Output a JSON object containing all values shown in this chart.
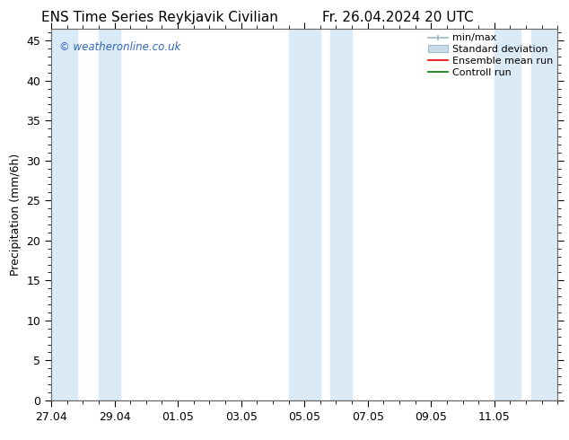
{
  "title_left": "ENS Time Series Reykjavik Civilian",
  "title_right": "Fr. 26.04.2024 20 UTC",
  "ylabel": "Precipitation (mm/6h)",
  "watermark": "© weatheronline.co.uk",
  "bg_color": "#ffffff",
  "plot_bg_color": "#ffffff",
  "shade_color": "#daeaf7",
  "shade_bands": [
    [
      27.0,
      27.83
    ],
    [
      28.5,
      29.17
    ],
    [
      34.5,
      35.5
    ],
    [
      35.83,
      36.5
    ],
    [
      41.0,
      41.83
    ],
    [
      42.17,
      43.0
    ]
  ],
  "x_start": 27.0,
  "x_end": 43.0,
  "xlim": [
    27.0,
    43.0
  ],
  "ylim": [
    0,
    46.5
  ],
  "yticks": [
    0,
    5,
    10,
    15,
    20,
    25,
    30,
    35,
    40,
    45
  ],
  "xtick_labels": [
    "27.04",
    "29.04",
    "01.05",
    "03.05",
    "05.05",
    "07.05",
    "09.05",
    "11.05"
  ],
  "xtick_positions": [
    27.0,
    29.0,
    31.0,
    33.0,
    35.0,
    37.0,
    39.0,
    41.0
  ],
  "legend_items": [
    {
      "label": "min/max",
      "color": "#9ab8cc",
      "type": "hline"
    },
    {
      "label": "Standard deviation",
      "color": "#c8dde8",
      "type": "bar"
    },
    {
      "label": "Ensemble mean run",
      "color": "#dd0000",
      "type": "line"
    },
    {
      "label": "Controll run",
      "color": "#007700",
      "type": "line"
    }
  ],
  "title_fontsize": 11,
  "axis_fontsize": 9,
  "tick_fontsize": 9,
  "watermark_color": "#3366bb",
  "border_color": "#666666",
  "legend_fontsize": 8
}
